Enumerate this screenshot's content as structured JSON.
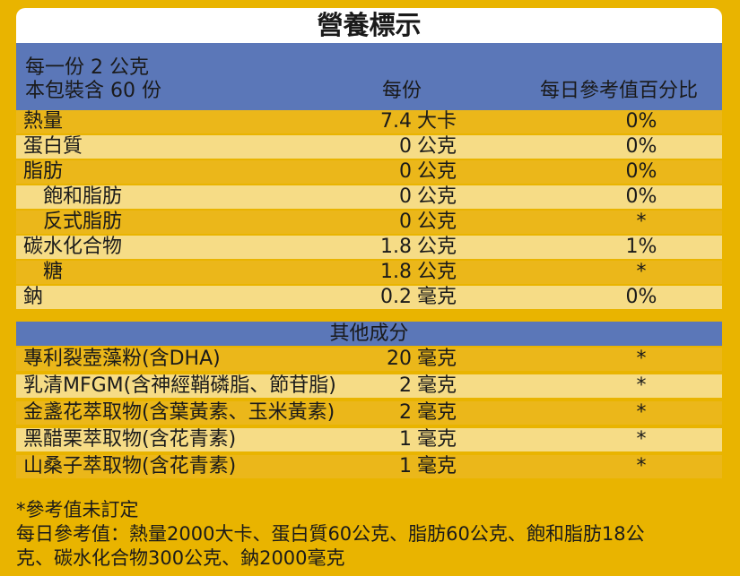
{
  "title": "營養標示",
  "header": {
    "serving_size": "每一份 2 公克",
    "servings_per_pack": "本包裝含 60 份",
    "col_per_serving": "每份",
    "col_daily_value": "每日參考值百分比"
  },
  "nutrients": [
    {
      "name": "熱量",
      "amount": "7.4",
      "unit": "大卡",
      "dv": "0%"
    },
    {
      "name": "蛋白質",
      "amount": "0",
      "unit": "公克",
      "dv": "0%"
    },
    {
      "name": "脂肪",
      "amount": "0",
      "unit": "公克",
      "dv": "0%"
    },
    {
      "name": "飽和脂肪",
      "amount": "0",
      "unit": "公克",
      "dv": "0%"
    },
    {
      "name": "反式脂肪",
      "amount": "0",
      "unit": "公克",
      "dv": "*"
    },
    {
      "name": "碳水化合物",
      "amount": "1.8",
      "unit": "公克",
      "dv": "1%"
    },
    {
      "name": "糖",
      "amount": "1.8",
      "unit": "公克",
      "dv": "*"
    },
    {
      "name": "鈉",
      "amount": "0.2",
      "unit": "毫克",
      "dv": "0%"
    }
  ],
  "other_section_label": "其他成分",
  "others": [
    {
      "name": "專利裂壺藻粉(含DHA)",
      "amount": "20",
      "unit": "毫克",
      "dv": "*"
    },
    {
      "name": "乳清MFGM(含神經鞘磷脂、節苷脂)",
      "amount": "2",
      "unit": "毫克",
      "dv": "*"
    },
    {
      "name": "金盞花萃取物(含葉黃素、玉米黃素)",
      "amount": "2",
      "unit": "毫克",
      "dv": "*"
    },
    {
      "name": "黑醋栗萃取物(含花青素)",
      "amount": "1",
      "unit": "毫克",
      "dv": "*"
    },
    {
      "name": "山桑子萃取物(含花青素)",
      "amount": "1",
      "unit": "毫克",
      "dv": "*"
    }
  ],
  "footer": {
    "note": "*參考值未訂定",
    "daily_ref_line1": "每日參考值：熱量2000大卡、蛋白質60公克、脂肪60公克、飽和脂肪18公",
    "daily_ref_line2": "克、碳水化合物300公克、鈉2000毫克"
  }
}
